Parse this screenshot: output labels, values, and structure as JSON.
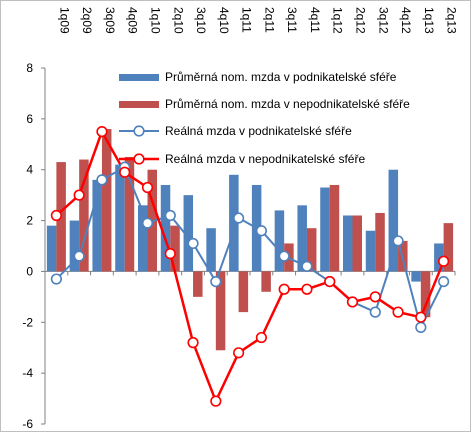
{
  "chart_data": {
    "type": "bar",
    "title": "",
    "xlabel": "",
    "ylabel": "",
    "ylim": [
      -6,
      8
    ],
    "yticks": [
      -6,
      -4,
      -2,
      0,
      2,
      4,
      6,
      8
    ],
    "grid": false,
    "legend_position": "top-right",
    "categories": [
      "1q09",
      "2q09",
      "3q09",
      "4q09",
      "1q10",
      "2q10",
      "3q10",
      "4q10",
      "1q11",
      "2q11",
      "3q11",
      "4q11",
      "1q12",
      "2q12",
      "3q12",
      "4q12",
      "1q13",
      "2q13"
    ],
    "series": [
      {
        "name": "Průměrná nom. mzda v podnikatelské sféře",
        "kind": "bar",
        "color": "#4f81bd",
        "values": [
          1.8,
          2.0,
          3.6,
          4.2,
          2.6,
          3.4,
          3.0,
          1.7,
          3.8,
          3.4,
          2.4,
          2.6,
          3.3,
          2.2,
          1.6,
          4.0,
          -0.4,
          1.1
        ]
      },
      {
        "name": "Průměrná nom. mzda v nepodnikatelské sféře",
        "kind": "bar",
        "color": "#c0504d",
        "values": [
          4.3,
          4.4,
          5.6,
          4.5,
          4.0,
          1.8,
          -1.0,
          -3.1,
          -1.6,
          -0.8,
          1.1,
          1.7,
          3.4,
          2.2,
          2.3,
          1.2,
          -1.8,
          1.9
        ]
      },
      {
        "name": "Reálná mzda v podnikatelské sféře",
        "kind": "line",
        "color": "#4f81bd",
        "values": [
          -0.3,
          0.6,
          3.6,
          4.1,
          1.9,
          2.2,
          1.1,
          -0.4,
          2.1,
          1.6,
          0.6,
          0.2,
          -0.4,
          -1.2,
          -1.6,
          1.2,
          -2.2,
          -0.4
        ]
      },
      {
        "name": "Reálná mzda v nepodnikatelské sféře",
        "kind": "line",
        "color": "#ff0000",
        "values": [
          2.2,
          3.0,
          5.5,
          3.9,
          3.3,
          0.7,
          -2.8,
          -5.1,
          -3.2,
          -2.6,
          -0.7,
          -0.7,
          -0.4,
          -1.2,
          -1.0,
          -1.6,
          -1.8,
          0.4
        ]
      }
    ]
  }
}
